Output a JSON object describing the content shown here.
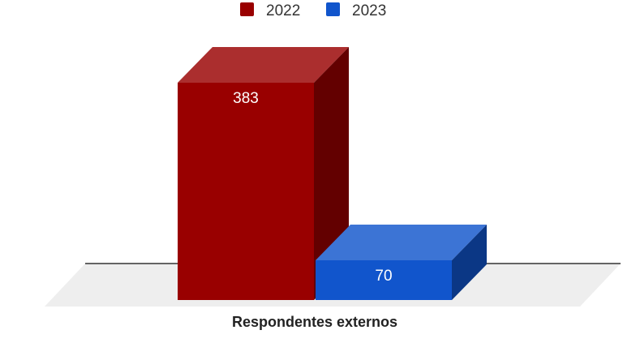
{
  "chart_data": {
    "type": "bar",
    "categories": [
      "Respondentes externos"
    ],
    "series": [
      {
        "name": "2022",
        "values": [
          383
        ],
        "color": "#990000"
      },
      {
        "name": "2023",
        "values": [
          70
        ],
        "color": "#1155cc"
      }
    ],
    "title": "",
    "xlabel": "",
    "ylabel": "",
    "ylim": [
      0,
      383
    ],
    "grid": false,
    "legend": "top",
    "style": "3d"
  }
}
